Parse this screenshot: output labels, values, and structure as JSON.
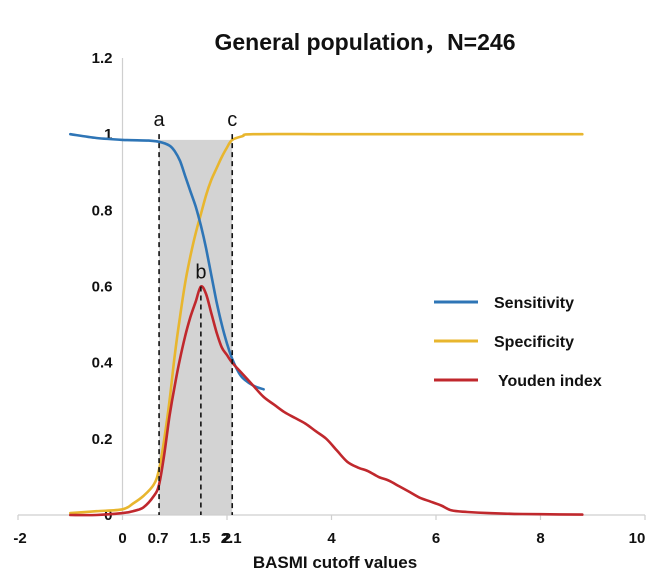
{
  "chart_data": {
    "type": "line",
    "title": "General population，N=246",
    "xlabel": "BASMI cutoff values",
    "ylabel": "",
    "xlim": [
      -2,
      10
    ],
    "ylim": [
      0,
      1.2
    ],
    "xticks": [
      "-2",
      "0",
      "2",
      "4",
      "6",
      "8",
      "10"
    ],
    "yticks": [
      "0",
      "0.2",
      "0.4",
      "0.6",
      "0.8",
      "1",
      "1.2"
    ],
    "legend_position": "right",
    "shaded_region": [
      0.7,
      2.1
    ],
    "cutoff_lines": [
      {
        "x": 0.7,
        "label": "a",
        "tick_label": "0.7",
        "top": 1.0
      },
      {
        "x": 1.5,
        "label": "b",
        "tick_label": "1.5",
        "top": 0.6
      },
      {
        "x": 2.1,
        "label": "c",
        "tick_label": "2.1",
        "top": 1.0
      }
    ],
    "series": [
      {
        "name": "Sensitivity",
        "color": "#2e75b6",
        "x": [
          -1,
          -0.5,
          0,
          0.5,
          0.7,
          0.9,
          1.0,
          1.1,
          1.2,
          1.3,
          1.4,
          1.5,
          1.6,
          1.7,
          1.8,
          1.9,
          2.0,
          2.1,
          2.2,
          2.3,
          2.5,
          2.7
        ],
        "y": [
          1.0,
          0.99,
          0.985,
          0.983,
          0.98,
          0.97,
          0.955,
          0.93,
          0.89,
          0.85,
          0.81,
          0.76,
          0.7,
          0.63,
          0.56,
          0.5,
          0.45,
          0.41,
          0.38,
          0.36,
          0.34,
          0.33
        ]
      },
      {
        "name": "Specificity",
        "color": "#e8b62e",
        "x": [
          -1,
          -0.5,
          0,
          0.2,
          0.4,
          0.6,
          0.7,
          0.8,
          0.9,
          1.0,
          1.1,
          1.2,
          1.3,
          1.4,
          1.5,
          1.6,
          1.7,
          1.8,
          1.9,
          2.0,
          2.1,
          2.3,
          2.5,
          4,
          6,
          8.8
        ],
        "y": [
          0.005,
          0.01,
          0.015,
          0.03,
          0.05,
          0.08,
          0.12,
          0.2,
          0.3,
          0.42,
          0.52,
          0.61,
          0.68,
          0.74,
          0.79,
          0.84,
          0.88,
          0.91,
          0.94,
          0.965,
          0.985,
          0.995,
          1.0,
          1.0,
          1.0,
          1.0
        ]
      },
      {
        "name": "Youden index",
        "color": "#c0282d",
        "x": [
          -1,
          -0.5,
          0,
          0.2,
          0.4,
          0.6,
          0.7,
          0.8,
          0.9,
          1.0,
          1.1,
          1.2,
          1.3,
          1.4,
          1.5,
          1.6,
          1.7,
          1.8,
          1.9,
          2.0,
          2.1,
          2.3,
          2.5,
          2.7,
          2.9,
          3.1,
          3.3,
          3.5,
          3.7,
          3.9,
          4.1,
          4.3,
          4.5,
          4.7,
          4.9,
          5.1,
          5.3,
          5.5,
          5.7,
          5.9,
          6.1,
          6.3,
          6.6,
          7.0,
          7.5,
          8.0,
          8.8
        ],
        "y": [
          0,
          0,
          0.005,
          0.01,
          0.02,
          0.05,
          0.08,
          0.16,
          0.26,
          0.34,
          0.41,
          0.47,
          0.52,
          0.56,
          0.6,
          0.58,
          0.53,
          0.48,
          0.44,
          0.42,
          0.4,
          0.37,
          0.34,
          0.31,
          0.29,
          0.27,
          0.255,
          0.24,
          0.22,
          0.2,
          0.17,
          0.14,
          0.125,
          0.115,
          0.1,
          0.09,
          0.075,
          0.06,
          0.045,
          0.035,
          0.025,
          0.012,
          0.008,
          0.005,
          0.003,
          0.002,
          0.001
        ]
      }
    ]
  }
}
